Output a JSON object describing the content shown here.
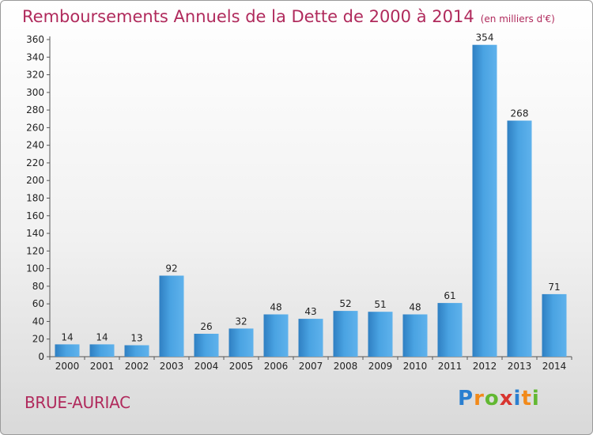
{
  "chart_data": {
    "type": "bar",
    "title": "Remboursements Annuels de la Dette de 2000 à 2014",
    "subtitle": "(en milliers d'€)",
    "xlabel": "",
    "ylabel": "",
    "categories": [
      "2000",
      "2001",
      "2002",
      "2003",
      "2004",
      "2005",
      "2006",
      "2007",
      "2008",
      "2009",
      "2010",
      "2011",
      "2012",
      "2013",
      "2014"
    ],
    "values": [
      14,
      14,
      13,
      92,
      26,
      32,
      48,
      43,
      52,
      51,
      48,
      61,
      354,
      268,
      71
    ],
    "ylim": [
      0,
      360
    ],
    "yticks": [
      0,
      20,
      40,
      60,
      80,
      100,
      120,
      140,
      160,
      180,
      200,
      220,
      240,
      260,
      280,
      300,
      320,
      340,
      360
    ],
    "grid": false,
    "legend": "none",
    "bar_color": "#3d95d6",
    "text_color": "#222222"
  },
  "location_label": "BRUE-AURIAC",
  "logo": {
    "letters": [
      "P",
      "r",
      "o",
      "x",
      "i",
      "t",
      "i"
    ],
    "colors": [
      "#2a7fd0",
      "#f28a1a",
      "#62b832",
      "#d8352f",
      "#2a7fd0",
      "#f28a1a",
      "#62b832"
    ]
  },
  "title_color": "#b02a5c"
}
